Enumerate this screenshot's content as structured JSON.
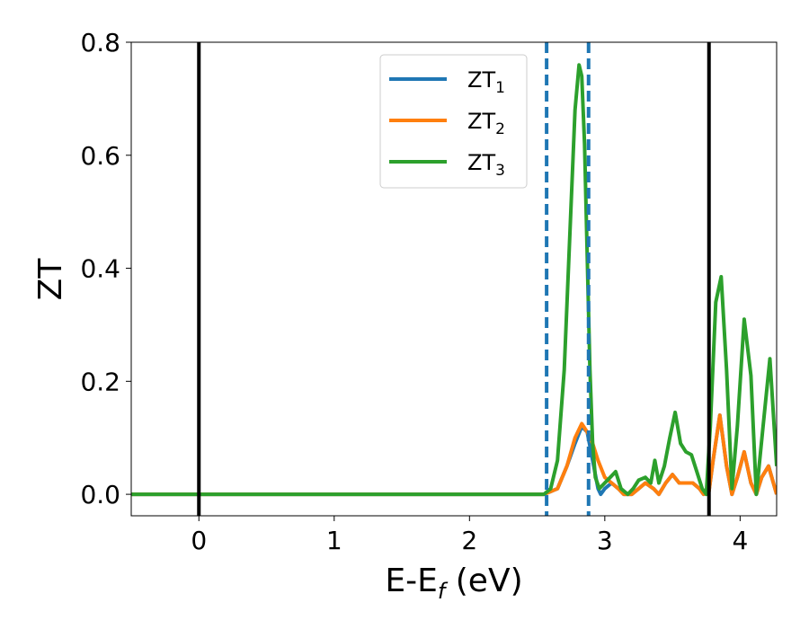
{
  "chart_data": {
    "type": "line",
    "title": "",
    "xlabel_main": "E-E",
    "xlabel_sub": "f",
    "xlabel_unit": " (eV)",
    "ylabel": "ZT",
    "xlim": [
      -0.5,
      4.27
    ],
    "ylim": [
      -0.038,
      0.8
    ],
    "grid": false,
    "legend_position": "top-center",
    "x_ticks": [
      0,
      1,
      2,
      3,
      4
    ],
    "x_tick_labels": [
      "0",
      "1",
      "2",
      "3",
      "4"
    ],
    "y_ticks": [
      0.0,
      0.2,
      0.4,
      0.6,
      0.8
    ],
    "y_tick_labels": [
      "0.0",
      "0.2",
      "0.4",
      "0.6",
      "0.8"
    ],
    "vertical_lines": [
      {
        "x": 0.0,
        "style": "solid",
        "color": "#000000"
      },
      {
        "x": 3.77,
        "style": "solid",
        "color": "#000000"
      },
      {
        "x": 2.57,
        "style": "dashed",
        "color": "#1f77b4"
      },
      {
        "x": 2.88,
        "style": "dashed",
        "color": "#1f77b4"
      }
    ],
    "series": [
      {
        "name": "ZT",
        "subscript": "1",
        "color": "#1f77b4",
        "x": [
          -0.5,
          2.55,
          2.65,
          2.72,
          2.78,
          2.83,
          2.87,
          2.91,
          2.95,
          2.97,
          3.0,
          3.05,
          3.1,
          3.14,
          3.2,
          3.25,
          3.3,
          3.36,
          3.4,
          3.45,
          3.5,
          3.55,
          3.6,
          3.65,
          3.7,
          3.73,
          3.77,
          3.8,
          3.85,
          3.9,
          3.94,
          3.98,
          4.03,
          4.08,
          4.12,
          4.16,
          4.21,
          4.27
        ],
        "y": [
          0.0,
          0.0,
          0.01,
          0.05,
          0.09,
          0.12,
          0.11,
          0.06,
          0.01,
          0.0,
          0.01,
          0.02,
          0.01,
          0.0,
          0.0,
          0.01,
          0.02,
          0.01,
          0.0,
          0.02,
          0.035,
          0.02,
          0.02,
          0.02,
          0.01,
          0.0,
          0.005,
          0.06,
          0.14,
          0.05,
          0.0,
          0.03,
          0.075,
          0.02,
          0.0,
          0.03,
          0.05,
          0.0
        ]
      },
      {
        "name": "ZT",
        "subscript": "2",
        "color": "#ff7f0e",
        "x": [
          -0.5,
          2.55,
          2.65,
          2.72,
          2.78,
          2.83,
          2.87,
          2.91,
          2.95,
          3.0,
          3.05,
          3.1,
          3.14,
          3.2,
          3.25,
          3.3,
          3.36,
          3.4,
          3.45,
          3.5,
          3.55,
          3.6,
          3.65,
          3.7,
          3.73,
          3.77,
          3.8,
          3.85,
          3.9,
          3.94,
          3.98,
          4.03,
          4.08,
          4.12,
          4.16,
          4.21,
          4.27
        ],
        "y": [
          0.0,
          0.0,
          0.01,
          0.05,
          0.1,
          0.125,
          0.11,
          0.09,
          0.06,
          0.03,
          0.02,
          0.01,
          0.0,
          0.0,
          0.01,
          0.02,
          0.01,
          0.0,
          0.02,
          0.035,
          0.02,
          0.02,
          0.02,
          0.01,
          0.0,
          0.005,
          0.06,
          0.14,
          0.05,
          0.0,
          0.03,
          0.075,
          0.02,
          0.0,
          0.03,
          0.05,
          0.0
        ]
      },
      {
        "name": "ZT",
        "subscript": "3",
        "color": "#2ca02c",
        "x": [
          -0.5,
          2.55,
          2.6,
          2.65,
          2.7,
          2.74,
          2.78,
          2.81,
          2.83,
          2.85,
          2.87,
          2.89,
          2.91,
          2.93,
          2.96,
          3.0,
          3.04,
          3.08,
          3.12,
          3.17,
          3.21,
          3.25,
          3.3,
          3.34,
          3.37,
          3.4,
          3.44,
          3.48,
          3.52,
          3.56,
          3.6,
          3.64,
          3.68,
          3.72,
          3.75,
          3.78,
          3.82,
          3.86,
          3.9,
          3.94,
          3.98,
          4.03,
          4.08,
          4.12,
          4.17,
          4.22,
          4.27
        ],
        "y": [
          0.0,
          0.0,
          0.01,
          0.06,
          0.22,
          0.45,
          0.68,
          0.76,
          0.74,
          0.62,
          0.42,
          0.22,
          0.09,
          0.03,
          0.01,
          0.02,
          0.03,
          0.04,
          0.01,
          0.0,
          0.01,
          0.025,
          0.03,
          0.02,
          0.06,
          0.02,
          0.05,
          0.1,
          0.145,
          0.09,
          0.075,
          0.07,
          0.04,
          0.01,
          0.0,
          0.12,
          0.34,
          0.385,
          0.22,
          0.01,
          0.12,
          0.31,
          0.21,
          0.0,
          0.12,
          0.24,
          0.05
        ]
      }
    ]
  }
}
